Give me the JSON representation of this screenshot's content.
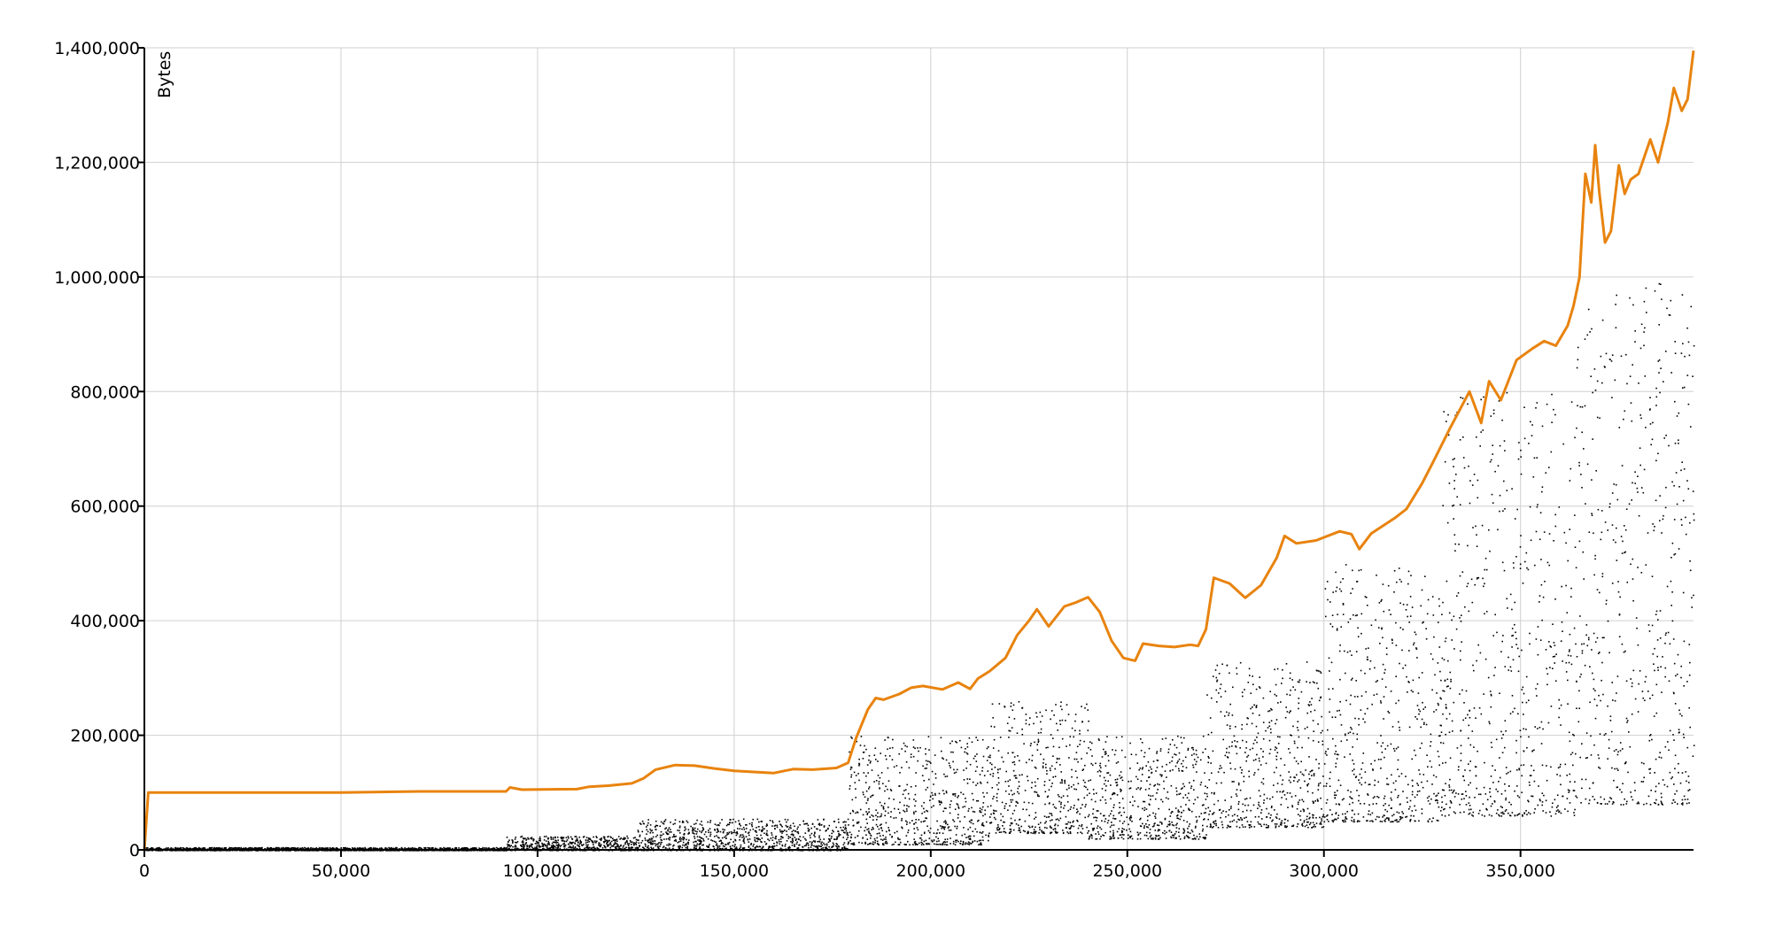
{
  "chart_data": {
    "type": "scatter",
    "title": "",
    "xlabel": "",
    "ylabel": "Bytes",
    "xlim": [
      0,
      394000
    ],
    "ylim": [
      0,
      1400000
    ],
    "grid": true,
    "x_ticks": [
      0,
      50000,
      100000,
      150000,
      200000,
      250000,
      300000,
      350000
    ],
    "x_tick_labels": [
      "0",
      "50,000",
      "100,000",
      "150,000",
      "200,000",
      "250,000",
      "300,000",
      "350,000"
    ],
    "y_ticks": [
      0,
      200000,
      400000,
      600000,
      800000,
      1000000,
      1200000,
      1400000
    ],
    "y_tick_labels": [
      "0",
      "200,000",
      "400,000",
      "600,000",
      "800,000",
      "1,000,000",
      "1,200,000",
      "1,400,000"
    ],
    "colors": {
      "line": "#e8830e",
      "points": "#000000",
      "grid": "#d0d0d0"
    },
    "series": [
      {
        "kind": "line",
        "x": [
          0,
          1000,
          50000,
          70000,
          92000,
          93000,
          96000,
          110000,
          113000,
          118000,
          124000,
          127000,
          130000,
          135000,
          140000,
          145000,
          150000,
          160000,
          165000,
          170000,
          176000,
          179000,
          181000,
          184000,
          186000,
          188000,
          192000,
          195000,
          198000,
          203000,
          207000,
          210000,
          212000,
          215000,
          219000,
          222000,
          225000,
          227000,
          230000,
          234000,
          237000,
          240000,
          243000,
          246000,
          249000,
          252000,
          254000,
          258000,
          262000,
          266000,
          268000,
          270000,
          272000,
          276000,
          280000,
          284000,
          288000,
          290000,
          293000,
          298000,
          304000,
          307000,
          309000,
          312000,
          318000,
          321000,
          325000,
          328000,
          332000,
          337000,
          340000,
          342000,
          345000,
          349000,
          353000,
          356000,
          359000,
          362000,
          363500,
          365000,
          366500,
          368000,
          369000,
          370000,
          371500,
          373000,
          375000,
          376500,
          378000,
          380000,
          383000,
          385000,
          387500,
          389000,
          391000,
          392500,
          394000
        ],
        "y": [
          0,
          100000,
          100000,
          102000,
          102000,
          109000,
          105000,
          106000,
          110000,
          112000,
          116000,
          125000,
          140000,
          148000,
          147000,
          142000,
          138000,
          134000,
          141000,
          140000,
          143000,
          152000,
          195000,
          245000,
          265000,
          262000,
          272000,
          283000,
          286000,
          280000,
          292000,
          281000,
          299000,
          312000,
          335000,
          375000,
          400000,
          420000,
          390000,
          425000,
          432000,
          441000,
          415000,
          365000,
          335000,
          330000,
          360000,
          356000,
          354000,
          358000,
          356000,
          385000,
          475000,
          465000,
          440000,
          462000,
          510000,
          548000,
          535000,
          540000,
          556000,
          551000,
          525000,
          552000,
          579000,
          595000,
          640000,
          680000,
          735000,
          800000,
          745000,
          818000,
          785000,
          855000,
          875000,
          888000,
          880000,
          915000,
          950000,
          1000000,
          1180000,
          1130000,
          1230000,
          1150000,
          1060000,
          1080000,
          1195000,
          1145000,
          1170000,
          1180000,
          1240000,
          1200000,
          1270000,
          1330000,
          1290000,
          1310000,
          1395000
        ]
      },
      {
        "kind": "scatter",
        "description_bands": [
          {
            "x_range": [
              0,
              92000
            ],
            "y_range": [
              0,
              5000
            ]
          },
          {
            "x_range": [
              92000,
              125000
            ],
            "y_range": [
              0,
              25000
            ]
          },
          {
            "x_range": [
              125000,
              179000
            ],
            "y_range": [
              0,
              55000
            ]
          },
          {
            "x_range": [
              179000,
              215000
            ],
            "y_range": [
              10000,
              200000
            ]
          },
          {
            "x_range": [
              215000,
              240000
            ],
            "y_range": [
              30000,
              260000
            ]
          },
          {
            "x_range": [
              240000,
              270000
            ],
            "y_range": [
              20000,
              200000
            ]
          },
          {
            "x_range": [
              270000,
              300000
            ],
            "y_range": [
              40000,
              330000
            ]
          },
          {
            "x_range": [
              300000,
              330000
            ],
            "y_range": [
              50000,
              500000
            ]
          },
          {
            "x_range": [
              330000,
              364000
            ],
            "y_range": [
              60000,
              800000
            ]
          },
          {
            "x_range": [
              364000,
              394000
            ],
            "y_range": [
              80000,
              990000
            ]
          }
        ]
      }
    ]
  }
}
